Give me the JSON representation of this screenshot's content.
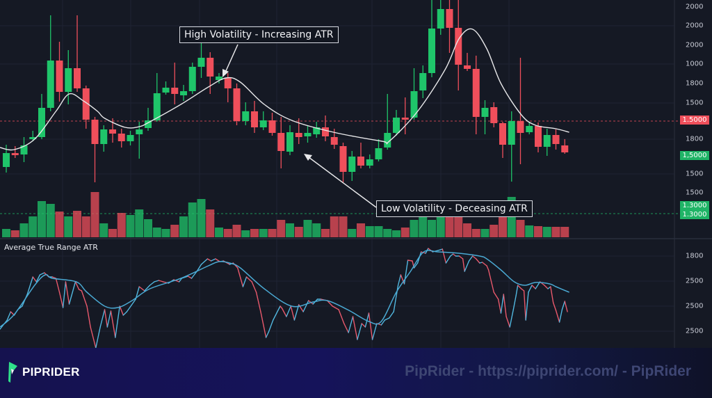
{
  "chart_data": {
    "type": "candlestick",
    "colors": {
      "up": "#1fc56a",
      "down": "#ef4f5b",
      "ma": "#e8e8ea",
      "atr_up": "#52b8e0",
      "atr_down": "#e9596c",
      "atr_smooth": "#4aa9d3",
      "background": "#151924"
    },
    "candles_ohlc": [
      [
        60,
        92,
        52,
        80
      ],
      [
        80,
        90,
        73,
        77
      ],
      [
        78,
        103,
        67,
        91
      ],
      [
        100,
        112,
        97,
        103
      ],
      [
        103,
        165,
        100,
        145
      ],
      [
        145,
        278,
        140,
        213
      ],
      [
        213,
        240,
        154,
        168
      ],
      [
        168,
        228,
        150,
        202
      ],
      [
        202,
        278,
        168,
        173
      ],
      [
        173,
        177,
        115,
        128
      ],
      [
        128,
        132,
        38,
        93
      ],
      [
        93,
        120,
        82,
        114
      ],
      [
        114,
        130,
        95,
        108
      ],
      [
        108,
        115,
        88,
        97
      ],
      [
        97,
        112,
        91,
        106
      ],
      [
        107,
        125,
        72,
        114
      ],
      [
        116,
        145,
        112,
        127
      ],
      [
        127,
        195,
        125,
        166
      ],
      [
        167,
        183,
        164,
        174
      ],
      [
        174,
        210,
        150,
        165
      ],
      [
        163,
        178,
        155,
        169
      ],
      [
        169,
        210,
        165,
        204
      ],
      [
        204,
        242,
        188,
        217
      ],
      [
        217,
        225,
        165,
        190
      ],
      [
        185,
        195,
        180,
        190
      ],
      [
        188,
        195,
        153,
        173
      ],
      [
        173,
        180,
        120,
        126
      ],
      [
        126,
        153,
        120,
        140
      ],
      [
        140,
        155,
        109,
        117
      ],
      [
        117,
        140,
        113,
        127
      ],
      [
        127,
        138,
        105,
        109
      ],
      [
        109,
        132,
        58,
        83
      ],
      [
        82,
        120,
        77,
        110
      ],
      [
        109,
        130,
        93,
        103
      ],
      [
        104,
        120,
        95,
        109
      ],
      [
        107,
        125,
        102,
        117
      ],
      [
        117,
        134,
        97,
        104
      ],
      [
        103,
        115,
        86,
        92
      ],
      [
        90,
        95,
        38,
        53
      ],
      [
        53,
        83,
        40,
        75
      ],
      [
        75,
        95,
        58,
        62
      ],
      [
        62,
        78,
        58,
        71
      ],
      [
        71,
        100,
        68,
        87
      ],
      [
        88,
        165,
        85,
        109
      ],
      [
        109,
        142,
        105,
        131
      ],
      [
        131,
        160,
        107,
        128
      ],
      [
        131,
        202,
        128,
        169
      ],
      [
        170,
        206,
        159,
        195
      ],
      [
        195,
        300,
        189,
        259
      ],
      [
        259,
        300,
        250,
        287
      ],
      [
        287,
        300,
        224,
        260
      ],
      [
        260,
        300,
        170,
        207
      ],
      [
        206,
        224,
        198,
        201
      ],
      [
        201,
        220,
        107,
        132
      ],
      [
        132,
        156,
        107,
        145
      ],
      [
        146,
        153,
        117,
        123
      ],
      [
        123,
        125,
        73,
        92
      ],
      [
        92,
        140,
        39,
        126
      ],
      [
        126,
        217,
        64,
        109
      ],
      [
        110,
        125,
        107,
        119
      ],
      [
        119,
        124,
        81,
        89
      ],
      [
        89,
        115,
        76,
        106
      ],
      [
        106,
        114,
        85,
        93
      ],
      [
        91,
        100,
        79,
        81
      ]
    ],
    "volume": [
      12,
      10,
      20,
      30,
      52,
      48,
      37,
      30,
      38,
      30,
      65,
      20,
      12,
      35,
      32,
      40,
      26,
      14,
      12,
      18,
      30,
      50,
      55,
      40,
      14,
      12,
      18,
      10,
      12,
      12,
      12,
      25,
      20,
      15,
      25,
      20,
      12,
      30,
      30,
      12,
      20,
      16,
      16,
      12,
      10,
      14,
      25,
      33,
      25,
      30,
      30,
      30,
      20,
      12,
      12,
      18,
      30,
      58,
      25,
      17,
      16,
      15,
      15,
      15
    ],
    "moving_average": [
      [
        -0.7,
        88
      ],
      [
        0.9,
        85
      ],
      [
        3.2,
        100
      ],
      [
        5.6,
        140
      ],
      [
        7.1,
        165
      ],
      [
        8.7,
        155
      ],
      [
        10.3,
        140
      ],
      [
        11.1,
        130
      ],
      [
        13.4,
        117
      ],
      [
        15.0,
        118
      ],
      [
        16.2,
        125
      ],
      [
        19.7,
        150
      ],
      [
        22.8,
        175
      ],
      [
        24.8,
        188
      ],
      [
        26.4,
        182
      ],
      [
        29.1,
        150
      ],
      [
        32.2,
        127
      ],
      [
        36.9,
        110
      ],
      [
        42.4,
        97
      ],
      [
        43.2,
        97
      ],
      [
        46.4,
        140
      ],
      [
        49.5,
        200
      ],
      [
        51.1,
        245
      ],
      [
        52.6,
        258
      ],
      [
        54.2,
        230
      ],
      [
        55.8,
        180
      ],
      [
        58.1,
        135
      ],
      [
        59.7,
        120
      ],
      [
        62.0,
        115
      ],
      [
        63.5,
        110
      ]
    ],
    "last_price_line": 126,
    "price_axis_labels": [
      "2000",
      "2000",
      "2000",
      "1000",
      "1800",
      "1500",
      "1800",
      "1500",
      "1500"
    ],
    "price_badges": {
      "last_red": "1.5000",
      "green": "1,5000",
      "volume_1": "1.3000",
      "volume_2": "1.3000"
    },
    "atr_title": "Average True Range ATR",
    "atr_axis_labels": [
      "1800",
      "2500",
      "2500",
      "2500"
    ],
    "atr": [
      [
        -0.7,
        27
      ],
      [
        0.1,
        40
      ],
      [
        0.5,
        52
      ],
      [
        0.9,
        47
      ],
      [
        1.3,
        55
      ],
      [
        1.8,
        60
      ],
      [
        2.4,
        78
      ],
      [
        3.0,
        102
      ],
      [
        3.4,
        95
      ],
      [
        3.8,
        105
      ],
      [
        4.3,
        108
      ],
      [
        4.8,
        102
      ],
      [
        5.2,
        102
      ],
      [
        5.6,
        100
      ],
      [
        6.0,
        80
      ],
      [
        6.4,
        58
      ],
      [
        6.7,
        95
      ],
      [
        7.1,
        63
      ],
      [
        7.8,
        95
      ],
      [
        8.2,
        84
      ],
      [
        8.5,
        82
      ],
      [
        9.1,
        60
      ],
      [
        9.5,
        30
      ],
      [
        10.1,
        0
      ],
      [
        10.6,
        30
      ],
      [
        11.1,
        55
      ],
      [
        11.4,
        30
      ],
      [
        11.8,
        53
      ],
      [
        12.3,
        15
      ],
      [
        12.8,
        60
      ],
      [
        13.2,
        47
      ],
      [
        13.6,
        52
      ],
      [
        14.6,
        70
      ],
      [
        15.0,
        88
      ],
      [
        15.6,
        82
      ],
      [
        16.2,
        90
      ],
      [
        16.7,
        95
      ],
      [
        17.2,
        97
      ],
      [
        17.7,
        95
      ],
      [
        18.3,
        93
      ],
      [
        18.9,
        98
      ],
      [
        19.5,
        95
      ],
      [
        19.8,
        100
      ],
      [
        20.5,
        103
      ],
      [
        20.9,
        100
      ],
      [
        21.5,
        110
      ],
      [
        22.0,
        120
      ],
      [
        22.7,
        128
      ],
      [
        23.1,
        125
      ],
      [
        23.6,
        128
      ],
      [
        24.1,
        124
      ],
      [
        24.5,
        125
      ],
      [
        25.2,
        120
      ],
      [
        25.6,
        122
      ],
      [
        26.1,
        115
      ],
      [
        26.7,
        88
      ],
      [
        27.1,
        102
      ],
      [
        27.7,
        95
      ],
      [
        28.2,
        80
      ],
      [
        28.7,
        52
      ],
      [
        29.3,
        15
      ],
      [
        29.6,
        23
      ],
      [
        30.1,
        40
      ],
      [
        30.5,
        50
      ],
      [
        30.9,
        60
      ],
      [
        31.1,
        57
      ],
      [
        31.6,
        45
      ],
      [
        32.1,
        60
      ],
      [
        32.5,
        40
      ],
      [
        33.0,
        62
      ],
      [
        33.5,
        52
      ],
      [
        34.1,
        68
      ],
      [
        34.6,
        63
      ],
      [
        35.1,
        70
      ],
      [
        35.5,
        70
      ],
      [
        36.2,
        68
      ],
      [
        36.8,
        60
      ],
      [
        37.5,
        55
      ],
      [
        38.1,
        35
      ],
      [
        38.6,
        22
      ],
      [
        39.1,
        45
      ],
      [
        39.6,
        12
      ],
      [
        40.1,
        35
      ],
      [
        40.5,
        30
      ],
      [
        40.9,
        50
      ],
      [
        41.3,
        12
      ],
      [
        41.8,
        35
      ],
      [
        42.3,
        33
      ],
      [
        42.7,
        40
      ],
      [
        43.2,
        43
      ],
      [
        43.7,
        52
      ],
      [
        44.2,
        90
      ],
      [
        44.5,
        105
      ],
      [
        44.9,
        92
      ],
      [
        45.3,
        126
      ],
      [
        45.8,
        125
      ],
      [
        46.0,
        115
      ],
      [
        46.4,
        122
      ],
      [
        46.8,
        138
      ],
      [
        47.3,
        136
      ],
      [
        47.6,
        143
      ],
      [
        48.1,
        138
      ],
      [
        48.7,
        140
      ],
      [
        49.2,
        142
      ],
      [
        49.6,
        122
      ],
      [
        50.1,
        132
      ],
      [
        50.4,
        135
      ],
      [
        50.7,
        132
      ],
      [
        51.1,
        132
      ],
      [
        51.5,
        128
      ],
      [
        51.7,
        110
      ],
      [
        52.2,
        125
      ],
      [
        52.6,
        132
      ],
      [
        53.0,
        128
      ],
      [
        53.4,
        122
      ],
      [
        53.7,
        123
      ],
      [
        54.2,
        118
      ],
      [
        54.4,
        112
      ],
      [
        55.0,
        80
      ],
      [
        55.5,
        70
      ],
      [
        55.8,
        50
      ],
      [
        56.1,
        77
      ],
      [
        56.4,
        45
      ],
      [
        56.8,
        30
      ],
      [
        57.2,
        55
      ],
      [
        57.5,
        75
      ],
      [
        57.7,
        90
      ],
      [
        58.1,
        85
      ],
      [
        58.4,
        82
      ],
      [
        58.6,
        40
      ],
      [
        58.9,
        80
      ],
      [
        59.3,
        90
      ],
      [
        59.7,
        85
      ],
      [
        60.2,
        95
      ],
      [
        60.7,
        90
      ],
      [
        61.1,
        85
      ],
      [
        61.4,
        88
      ],
      [
        61.7,
        65
      ],
      [
        62.0,
        54
      ],
      [
        62.4,
        37
      ],
      [
        62.7,
        55
      ],
      [
        63.0,
        67
      ],
      [
        63.3,
        52
      ]
    ],
    "atr_smooth": [
      [
        -0.7,
        30
      ],
      [
        0.9,
        48
      ],
      [
        3.2,
        90
      ],
      [
        4.4,
        105
      ],
      [
        5.2,
        100
      ],
      [
        7.9,
        95
      ],
      [
        9.1,
        80
      ],
      [
        11.1,
        60
      ],
      [
        12.6,
        58
      ],
      [
        14.2,
        68
      ],
      [
        16.2,
        85
      ],
      [
        19.7,
        100
      ],
      [
        22.8,
        118
      ],
      [
        24.0,
        124
      ],
      [
        25.2,
        122
      ],
      [
        26.4,
        115
      ],
      [
        29.1,
        85
      ],
      [
        32.2,
        60
      ],
      [
        34.6,
        66
      ],
      [
        36.2,
        68
      ],
      [
        38.5,
        55
      ],
      [
        40.9,
        38
      ],
      [
        42.3,
        38
      ],
      [
        44.0,
        80
      ],
      [
        45.6,
        110
      ],
      [
        47.1,
        138
      ],
      [
        48.7,
        138
      ],
      [
        51.1,
        136
      ],
      [
        53.4,
        132
      ],
      [
        54.2,
        128
      ],
      [
        55.8,
        112
      ],
      [
        57.3,
        95
      ],
      [
        58.5,
        90
      ],
      [
        59.7,
        94
      ],
      [
        61.3,
        92
      ],
      [
        62.0,
        88
      ],
      [
        63.5,
        80
      ]
    ],
    "annotations": {
      "high": "High Volatility - Increasing ATR",
      "low": "Low Volatility - Deceasing ATR"
    },
    "grid": true
  },
  "banner": {
    "logo": "PIPRIDER",
    "watermark": "PipRider - https://piprider.com/ - PipRider"
  }
}
